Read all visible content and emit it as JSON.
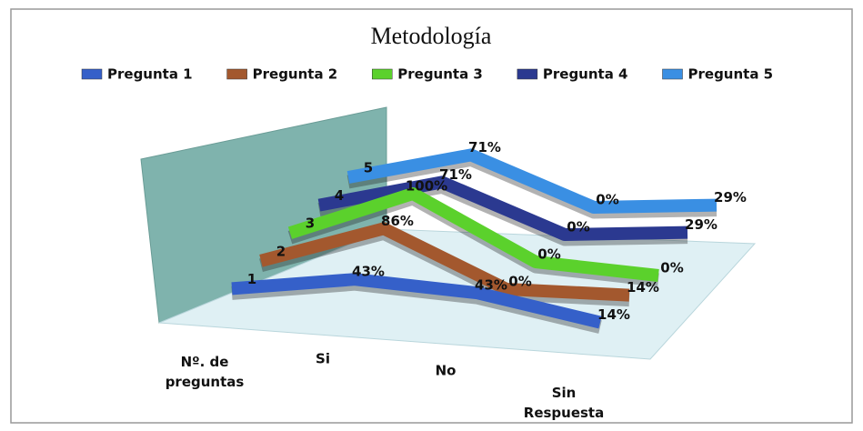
{
  "chart_data": {
    "type": "line3d",
    "title": "Metodología",
    "categories": [
      "Nº. de preguntas",
      "Si",
      "No",
      "Sin Respuesta"
    ],
    "series": [
      {
        "name": "Pregunta 1",
        "color": "#3560c9",
        "values": [
          1,
          43,
          43,
          14
        ],
        "value_labels": [
          "1",
          "43%",
          "43%",
          "14%"
        ]
      },
      {
        "name": "Pregunta 2",
        "color": "#a3582e",
        "values": [
          2,
          86,
          0,
          14
        ],
        "value_labels": [
          "2",
          "86%",
          "0%",
          "14%"
        ]
      },
      {
        "name": "Pregunta 3",
        "color": "#5bd12c",
        "values": [
          3,
          100,
          0,
          0
        ],
        "value_labels": [
          "3",
          "100%",
          "0%",
          "0%"
        ]
      },
      {
        "name": "Pregunta 4",
        "color": "#2b3990",
        "values": [
          4,
          71,
          0,
          29
        ],
        "value_labels": [
          "4",
          "71%",
          "0%",
          "29%"
        ]
      },
      {
        "name": "Pregunta 5",
        "color": "#3a8fe3",
        "values": [
          5,
          71,
          0,
          29
        ],
        "value_labels": [
          "5",
          "71%",
          "0%",
          "29%"
        ]
      }
    ],
    "legend": "top"
  }
}
